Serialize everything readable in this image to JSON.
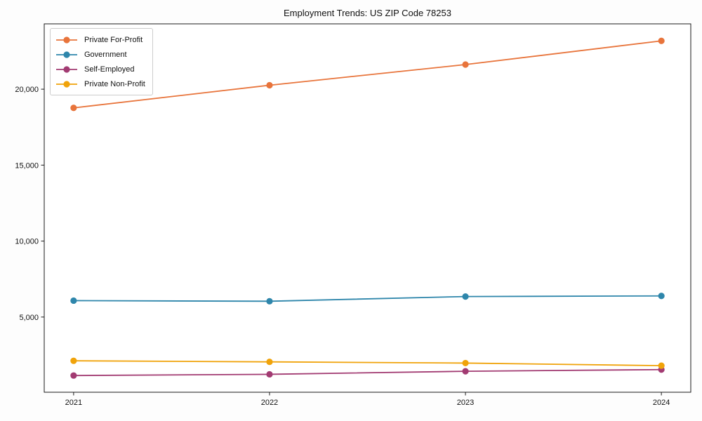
{
  "chart_data": {
    "type": "line",
    "title": "Employment Trends: US ZIP Code 78253",
    "xlabel": "",
    "ylabel": "",
    "x": [
      2021,
      2022,
      2023,
      2024
    ],
    "x_tick_labels": [
      "2021",
      "2022",
      "2023",
      "2024"
    ],
    "y_ticks": [
      {
        "value": 5000,
        "label": "5,000"
      },
      {
        "value": 10000,
        "label": "10,000"
      },
      {
        "value": 15000,
        "label": "15,000"
      },
      {
        "value": 20000,
        "label": "20,000"
      }
    ],
    "xlim": [
      2020.85,
      2024.15
    ],
    "ylim": [
      50,
      24300
    ],
    "grid": false,
    "legend_position": "upper left",
    "series": [
      {
        "name": "Private For-Profit",
        "color": "#e8743b",
        "values": [
          18770,
          20260,
          21620,
          23180
        ]
      },
      {
        "name": "Government",
        "color": "#2e86ab",
        "values": [
          6080,
          6040,
          6350,
          6390
        ]
      },
      {
        "name": "Self-Employed",
        "color": "#a23b72",
        "values": [
          1150,
          1230,
          1430,
          1540
        ]
      },
      {
        "name": "Private Non-Profit",
        "color": "#f0a30a",
        "values": [
          2120,
          2050,
          1970,
          1800
        ]
      }
    ],
    "style": {
      "axis_color": "#1a1a1a",
      "plot_background": "#ffffff",
      "line_width": 1.8,
      "marker_radius": 4.6
    }
  }
}
